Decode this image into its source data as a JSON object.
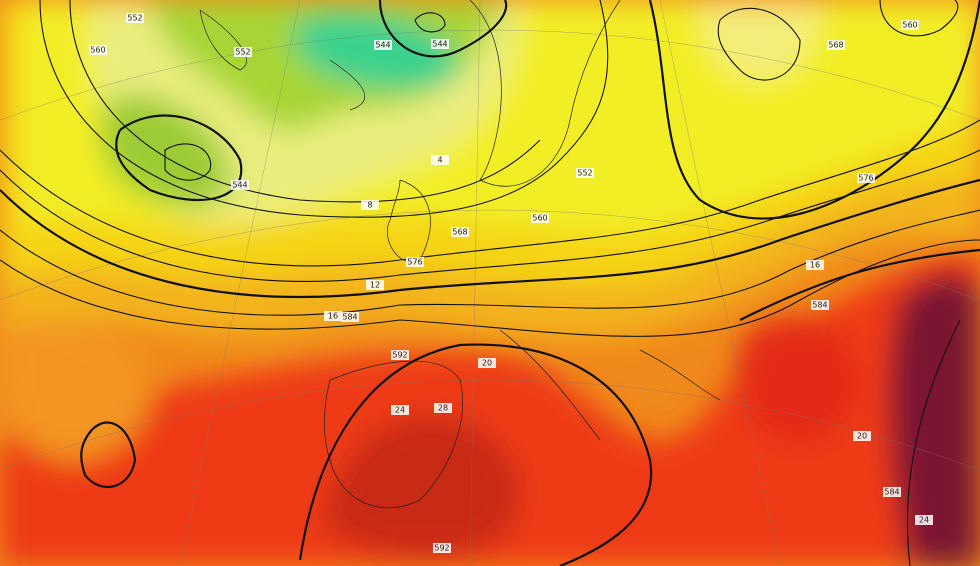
{
  "map": {
    "contour_labels": [
      {
        "text": "552"
      },
      {
        "text": "560"
      },
      {
        "text": "552"
      },
      {
        "text": "544"
      },
      {
        "text": "544"
      },
      {
        "text": "544"
      },
      {
        "text": "568"
      },
      {
        "text": "576"
      },
      {
        "text": "584"
      },
      {
        "text": "592"
      },
      {
        "text": "560"
      },
      {
        "text": "552"
      },
      {
        "text": "576"
      },
      {
        "text": "560"
      },
      {
        "text": "568"
      },
      {
        "text": "584"
      },
      {
        "text": "592"
      },
      {
        "text": "584"
      }
    ],
    "temperature_labels": [
      {
        "text": "16"
      },
      {
        "text": "12"
      },
      {
        "text": "8"
      },
      {
        "text": "4"
      },
      {
        "text": "20"
      },
      {
        "text": "24"
      },
      {
        "text": "28"
      },
      {
        "text": "16"
      },
      {
        "text": "20"
      },
      {
        "text": "24"
      }
    ]
  }
}
